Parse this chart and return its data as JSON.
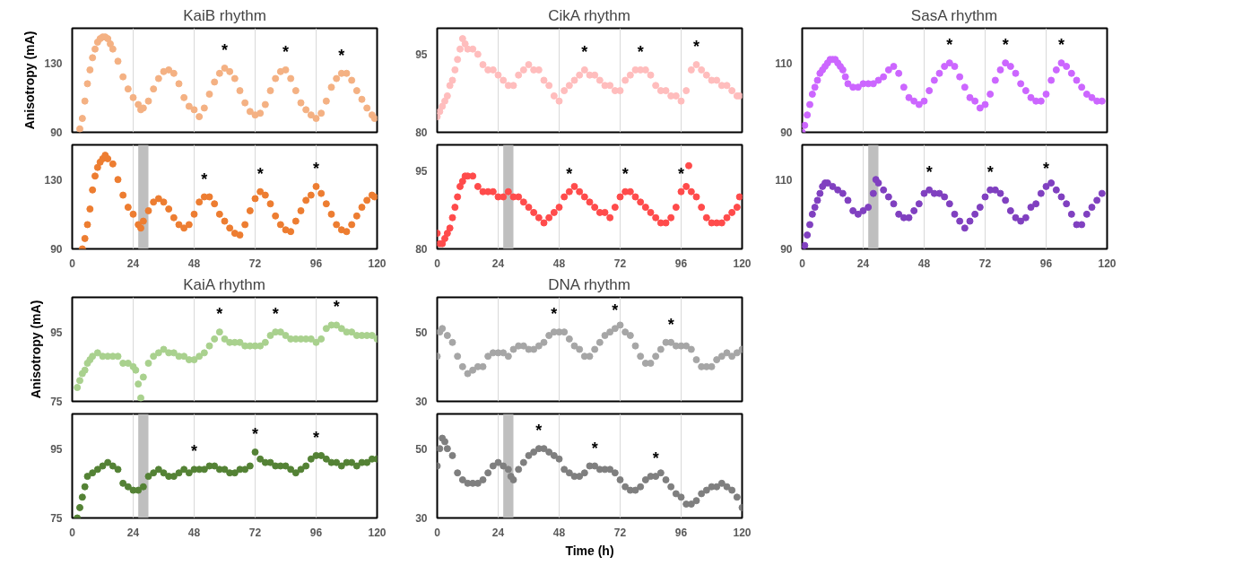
{
  "chart_data": [
    {
      "type": "scatter",
      "title": "KaiB rhythm",
      "ylabel": "Anisotropy (mA)",
      "color": "#f4b183",
      "marker": "circle",
      "grid": "x",
      "tick_labels": "y",
      "xlim": [
        0,
        120
      ],
      "xticks": [
        0,
        24,
        48,
        72,
        96,
        120
      ],
      "ylim": [
        90,
        150
      ],
      "yticks": [
        90,
        130
      ],
      "x": [
        3,
        4,
        5,
        6,
        7,
        8,
        9,
        10,
        11,
        12,
        13,
        14,
        15,
        16,
        18,
        20,
        22,
        24,
        26,
        27,
        28,
        30,
        32,
        34,
        36,
        38,
        40,
        42,
        44,
        46,
        48,
        50,
        52,
        54,
        56,
        58,
        60,
        62,
        64,
        66,
        68,
        70,
        72,
        74,
        76,
        78,
        80,
        82,
        84,
        86,
        88,
        90,
        92,
        94,
        96,
        98,
        100,
        102,
        104,
        106,
        108,
        110,
        112,
        114,
        116,
        118,
        119
      ],
      "values": [
        92,
        98,
        108,
        118,
        126,
        133,
        138,
        142,
        144,
        145,
        145,
        144,
        141,
        138,
        131,
        122,
        115,
        110,
        106,
        103,
        104,
        108,
        115,
        121,
        125,
        126,
        124,
        118,
        110,
        105,
        103,
        99,
        104,
        112,
        119,
        124,
        127,
        125,
        121,
        114,
        107,
        102,
        100,
        101,
        106,
        114,
        121,
        125,
        126,
        121,
        114,
        107,
        103,
        100,
        98,
        101,
        108,
        116,
        121,
        124,
        124,
        120,
        114,
        109,
        104,
        100,
        98
      ],
      "annotations": [
        {
          "text": "*",
          "x": 60,
          "y": 127
        },
        {
          "text": "*",
          "x": 84,
          "y": 126
        },
        {
          "text": "*",
          "x": 106,
          "y": 124
        }
      ]
    },
    {
      "type": "scatter",
      "title": "CikA rhythm",
      "color": "#ffbdbd",
      "marker": "circle",
      "grid": "x",
      "tick_labels": "y",
      "xlim": [
        0,
        120
      ],
      "xticks": [
        0,
        24,
        48,
        72,
        96,
        120
      ],
      "ylim": [
        80,
        100
      ],
      "yticks": [
        80,
        95
      ],
      "x": [
        0,
        1,
        2,
        3,
        4,
        5,
        6,
        7,
        8,
        9,
        10,
        11,
        12,
        14,
        16,
        18,
        20,
        22,
        24,
        26,
        28,
        30,
        32,
        34,
        36,
        38,
        40,
        42,
        44,
        46,
        48,
        50,
        52,
        54,
        56,
        58,
        60,
        62,
        64,
        66,
        68,
        70,
        72,
        74,
        76,
        78,
        80,
        82,
        84,
        86,
        88,
        90,
        92,
        94,
        96,
        98,
        100,
        102,
        104,
        106,
        108,
        110,
        112,
        114,
        116,
        118,
        119
      ],
      "values": [
        83,
        84,
        85,
        86,
        87,
        89,
        90,
        92,
        94,
        96,
        98,
        97,
        96,
        96,
        95,
        93,
        92,
        92,
        91,
        90,
        89,
        89,
        91,
        92,
        93,
        92,
        92,
        90,
        89,
        87,
        86,
        88,
        89,
        90,
        91,
        92,
        91,
        91,
        90,
        89,
        89,
        88,
        88,
        90,
        91,
        92,
        92,
        92,
        91,
        89,
        88,
        88,
        87,
        87,
        86,
        88,
        92,
        93,
        92,
        91,
        90,
        90,
        89,
        89,
        88,
        87,
        87
      ],
      "annotations": [
        {
          "text": "*",
          "x": 58,
          "y": 92
        },
        {
          "text": "*",
          "x": 80,
          "y": 92
        },
        {
          "text": "*",
          "x": 102,
          "y": 93
        }
      ]
    },
    {
      "type": "scatter",
      "title": "SasA rhythm",
      "color": "#cc66ff",
      "marker": "circle",
      "grid": "x",
      "tick_labels": "y",
      "xlim": [
        0,
        120
      ],
      "xticks": [
        0,
        24,
        48,
        72,
        96,
        120
      ],
      "ylim": [
        90,
        120
      ],
      "yticks": [
        90,
        110
      ],
      "x": [
        0,
        1,
        2,
        3,
        4,
        5,
        6,
        7,
        8,
        9,
        10,
        11,
        12,
        13,
        14,
        15,
        16,
        17,
        18,
        20,
        22,
        24,
        26,
        28,
        30,
        32,
        34,
        36,
        38,
        40,
        42,
        44,
        46,
        48,
        50,
        52,
        54,
        56,
        58,
        60,
        62,
        64,
        66,
        68,
        70,
        72,
        74,
        76,
        78,
        80,
        82,
        84,
        86,
        88,
        90,
        92,
        94,
        96,
        98,
        100,
        102,
        104,
        106,
        108,
        110,
        112,
        114,
        116,
        118
      ],
      "values": [
        90,
        92,
        95,
        98,
        101,
        103,
        105,
        107,
        108,
        109,
        110,
        111,
        111,
        111,
        110,
        109,
        108,
        106,
        104,
        103,
        103,
        104,
        104,
        104,
        105,
        106,
        108,
        109,
        107,
        103,
        100,
        99,
        98,
        99,
        102,
        105,
        107,
        109,
        110,
        109,
        106,
        103,
        100,
        99,
        97,
        98,
        101,
        105,
        108,
        110,
        109,
        107,
        104,
        102,
        100,
        99,
        99,
        101,
        105,
        108,
        110,
        109,
        107,
        105,
        103,
        101,
        100,
        99,
        99
      ],
      "annotations": [
        {
          "text": "*",
          "x": 58,
          "y": 110
        },
        {
          "text": "*",
          "x": 80,
          "y": 110
        },
        {
          "text": "*",
          "x": 102,
          "y": 110
        }
      ]
    },
    {
      "type": "scatter",
      "color": "#ed7d31",
      "marker": "circle",
      "grid": "x",
      "xlim": [
        0,
        120
      ],
      "xticks": [
        0,
        24,
        48,
        72,
        96,
        120
      ],
      "ylim": [
        90,
        150
      ],
      "yticks": [
        90,
        130
      ],
      "bands": [
        {
          "axis": "x",
          "from": 26,
          "to": 30,
          "color": "#bfbfbf"
        }
      ],
      "x": [
        4,
        5,
        6,
        7,
        8,
        9,
        10,
        11,
        12,
        13,
        14,
        16,
        18,
        20,
        22,
        24,
        26,
        27,
        28,
        30,
        32,
        34,
        36,
        38,
        40,
        42,
        44,
        46,
        48,
        50,
        52,
        54,
        56,
        58,
        60,
        62,
        64,
        66,
        68,
        70,
        72,
        74,
        76,
        78,
        80,
        82,
        84,
        86,
        88,
        90,
        92,
        94,
        96,
        98,
        100,
        102,
        104,
        106,
        108,
        110,
        112,
        114,
        116,
        118,
        119
      ],
      "values": [
        90,
        96,
        104,
        113,
        124,
        132,
        137,
        140,
        142,
        144,
        142,
        139,
        130,
        121,
        114,
        110,
        104,
        102,
        106,
        112,
        117,
        119,
        117,
        113,
        108,
        104,
        102,
        104,
        110,
        117,
        120,
        120,
        116,
        110,
        106,
        102,
        99,
        98,
        104,
        112,
        119,
        123,
        121,
        116,
        109,
        104,
        101,
        100,
        106,
        112,
        118,
        121,
        126,
        122,
        116,
        110,
        104,
        101,
        100,
        104,
        109,
        114,
        118,
        121,
        120
      ],
      "annotations": [
        {
          "text": "*",
          "x": 52,
          "y": 120
        },
        {
          "text": "*",
          "x": 74,
          "y": 123
        },
        {
          "text": "*",
          "x": 96,
          "y": 126
        }
      ]
    },
    {
      "type": "scatter",
      "color": "#ff4b4b",
      "marker": "circle",
      "grid": "x",
      "xlim": [
        0,
        120
      ],
      "xticks": [
        0,
        24,
        48,
        72,
        96,
        120
      ],
      "ylim": [
        80,
        100
      ],
      "yticks": [
        80,
        95
      ],
      "bands": [
        {
          "axis": "x",
          "from": 26,
          "to": 30,
          "color": "#bfbfbf"
        }
      ],
      "x": [
        0,
        1,
        2,
        3,
        4,
        5,
        6,
        7,
        8,
        9,
        10,
        11,
        12,
        14,
        16,
        18,
        20,
        22,
        24,
        26,
        28,
        30,
        32,
        34,
        36,
        38,
        40,
        42,
        44,
        46,
        48,
        50,
        52,
        54,
        56,
        58,
        60,
        62,
        64,
        66,
        68,
        70,
        72,
        74,
        76,
        78,
        80,
        82,
        84,
        86,
        88,
        90,
        92,
        94,
        96,
        98,
        99,
        100,
        102,
        104,
        106,
        108,
        110,
        112,
        114,
        116,
        118,
        119
      ],
      "values": [
        83,
        81,
        81,
        82,
        83,
        84,
        86,
        88,
        90,
        92,
        93,
        94,
        94,
        94,
        92,
        91,
        91,
        91,
        90,
        90,
        91,
        90,
        90,
        89,
        88,
        87,
        86,
        85,
        86,
        87,
        88,
        90,
        91,
        92,
        91,
        90,
        89,
        88,
        87,
        87,
        86,
        88,
        90,
        91,
        91,
        90,
        89,
        88,
        87,
        86,
        85,
        85,
        86,
        88,
        91,
        92,
        96,
        91,
        90,
        88,
        86,
        85,
        85,
        85,
        86,
        87,
        88,
        90
      ],
      "annotations": [
        {
          "text": "*",
          "x": 52,
          "y": 91
        },
        {
          "text": "*",
          "x": 74,
          "y": 91
        },
        {
          "text": "*",
          "x": 96,
          "y": 91
        }
      ]
    },
    {
      "type": "scatter",
      "color": "#8040c0",
      "marker": "circle",
      "grid": "x",
      "xlim": [
        0,
        120
      ],
      "xticks": [
        0,
        24,
        48,
        72,
        96,
        120
      ],
      "ylim": [
        90,
        120
      ],
      "yticks": [
        90,
        110
      ],
      "bands": [
        {
          "axis": "x",
          "from": 26,
          "to": 30,
          "color": "#bfbfbf"
        }
      ],
      "x": [
        0,
        1,
        2,
        3,
        4,
        5,
        6,
        7,
        8,
        9,
        10,
        12,
        14,
        16,
        18,
        20,
        22,
        24,
        26,
        28,
        29,
        30,
        32,
        34,
        36,
        38,
        40,
        42,
        44,
        46,
        48,
        50,
        52,
        54,
        56,
        58,
        60,
        62,
        64,
        66,
        68,
        70,
        72,
        74,
        76,
        78,
        80,
        82,
        84,
        86,
        88,
        90,
        92,
        94,
        96,
        98,
        100,
        102,
        104,
        106,
        108,
        110,
        112,
        114,
        116,
        118
      ],
      "values": [
        90,
        91,
        94,
        97,
        100,
        102,
        104,
        106,
        108,
        109,
        109,
        108,
        107,
        106,
        104,
        101,
        100,
        101,
        102,
        106,
        110,
        109,
        107,
        105,
        103,
        100,
        99,
        99,
        101,
        103,
        106,
        107,
        106,
        106,
        105,
        103,
        100,
        98,
        96,
        98,
        100,
        102,
        105,
        107,
        107,
        106,
        104,
        101,
        99,
        98,
        99,
        102,
        103,
        106,
        108,
        109,
        107,
        105,
        103,
        100,
        97,
        97,
        100,
        102,
        104,
        106
      ],
      "annotations": [
        {
          "text": "*",
          "x": 50,
          "y": 107
        },
        {
          "text": "*",
          "x": 74,
          "y": 107
        },
        {
          "text": "*",
          "x": 96,
          "y": 108
        }
      ]
    },
    {
      "type": "scatter",
      "title": "KaiA rhythm",
      "ylabel": "Anisotropy (mA)",
      "color": "#a9d18e",
      "marker": "circle",
      "grid": "x",
      "tick_labels": "y",
      "xlim": [
        0,
        120
      ],
      "xticks": [
        0,
        24,
        48,
        72,
        96,
        120
      ],
      "ylim": [
        75,
        105
      ],
      "yticks": [
        75,
        95
      ],
      "x": [
        2,
        3,
        4,
        5,
        6,
        7,
        8,
        10,
        12,
        14,
        16,
        18,
        20,
        22,
        24,
        25,
        26,
        27,
        28,
        30,
        32,
        34,
        36,
        38,
        40,
        42,
        44,
        46,
        48,
        50,
        52,
        54,
        56,
        58,
        60,
        62,
        64,
        66,
        68,
        70,
        72,
        74,
        76,
        78,
        80,
        82,
        84,
        86,
        88,
        90,
        92,
        94,
        96,
        98,
        100,
        102,
        104,
        106,
        108,
        110,
        112,
        114,
        116,
        118,
        120
      ],
      "values": [
        79,
        81,
        83,
        84,
        86,
        87,
        88,
        89,
        88,
        88,
        88,
        88,
        86,
        86,
        85,
        84,
        80,
        76,
        82,
        86,
        88,
        89,
        90,
        89,
        89,
        88,
        88,
        87,
        87,
        88,
        89,
        91,
        93,
        95,
        93,
        92,
        92,
        92,
        91,
        91,
        91,
        91,
        92,
        94,
        95,
        95,
        94,
        93,
        93,
        93,
        93,
        93,
        92,
        93,
        96,
        97,
        97,
        96,
        95,
        95,
        94,
        94,
        94,
        94,
        93
      ],
      "annotations": [
        {
          "text": "*",
          "x": 58,
          "y": 95
        },
        {
          "text": "*",
          "x": 80,
          "y": 95
        },
        {
          "text": "*",
          "x": 104,
          "y": 97
        }
      ]
    },
    {
      "type": "scatter",
      "title": "DNA rhythm",
      "color": "#a6a6a6",
      "marker": "circle",
      "grid": "x",
      "tick_labels": "y",
      "xlim": [
        0,
        120
      ],
      "xticks": [
        0,
        24,
        48,
        72,
        96,
        120
      ],
      "ylim": [
        30,
        60
      ],
      "yticks": [
        30,
        50
      ],
      "x": [
        0,
        1,
        2,
        4,
        6,
        8,
        10,
        12,
        14,
        16,
        18,
        20,
        22,
        24,
        26,
        28,
        30,
        32,
        34,
        36,
        38,
        40,
        42,
        44,
        46,
        48,
        50,
        52,
        54,
        56,
        58,
        60,
        62,
        64,
        66,
        68,
        70,
        72,
        74,
        76,
        78,
        80,
        82,
        84,
        86,
        88,
        90,
        92,
        94,
        96,
        98,
        100,
        102,
        104,
        106,
        108,
        110,
        112,
        114,
        116,
        118,
        120
      ],
      "values": [
        43,
        50,
        51,
        49,
        47,
        43,
        40,
        38,
        39,
        40,
        40,
        43,
        44,
        44,
        44,
        43,
        45,
        46,
        46,
        45,
        45,
        46,
        47,
        49,
        50,
        50,
        50,
        48,
        46,
        45,
        43,
        43,
        45,
        47,
        49,
        50,
        51,
        52,
        50,
        49,
        46,
        43,
        41,
        41,
        43,
        45,
        47,
        47,
        46,
        46,
        46,
        45,
        42,
        40,
        40,
        40,
        42,
        43,
        44,
        43,
        44,
        45
      ],
      "annotations": [
        {
          "text": "*",
          "x": 46,
          "y": 50
        },
        {
          "text": "*",
          "x": 70,
          "y": 51
        },
        {
          "text": "*",
          "x": 92,
          "y": 47
        }
      ]
    },
    {
      "type": "scatter",
      "color": "#548235",
      "marker": "circle",
      "grid": "x",
      "xlim": [
        0,
        120
      ],
      "xticks": [
        0,
        24,
        48,
        72,
        96,
        120
      ],
      "ylim": [
        75,
        105
      ],
      "yticks": [
        75,
        95
      ],
      "bands": [
        {
          "axis": "x",
          "from": 26,
          "to": 30,
          "color": "#bfbfbf"
        }
      ],
      "x": [
        2,
        3,
        4,
        5,
        6,
        8,
        10,
        12,
        14,
        16,
        18,
        20,
        22,
        24,
        26,
        28,
        30,
        32,
        34,
        36,
        38,
        40,
        42,
        44,
        46,
        48,
        50,
        52,
        54,
        56,
        58,
        60,
        62,
        64,
        66,
        68,
        70,
        72,
        74,
        76,
        78,
        80,
        82,
        84,
        86,
        88,
        90,
        92,
        94,
        96,
        98,
        100,
        102,
        104,
        106,
        108,
        110,
        112,
        114,
        116,
        118,
        120
      ],
      "values": [
        75,
        78,
        81,
        84,
        87,
        88,
        89,
        90,
        91,
        90,
        89,
        85,
        84,
        83,
        83,
        84,
        87,
        88,
        89,
        88,
        87,
        87,
        88,
        89,
        88,
        89,
        89,
        89,
        90,
        90,
        89,
        89,
        88,
        88,
        89,
        89,
        90,
        94,
        92,
        91,
        91,
        90,
        90,
        90,
        89,
        88,
        89,
        90,
        92,
        93,
        93,
        92,
        91,
        91,
        90,
        91,
        91,
        90,
        91,
        91,
        92,
        92
      ],
      "annotations": [
        {
          "text": "*",
          "x": 48,
          "y": 89
        },
        {
          "text": "*",
          "x": 72,
          "y": 94
        },
        {
          "text": "*",
          "x": 96,
          "y": 93
        }
      ]
    },
    {
      "type": "scatter",
      "xlabel": "Time (h)",
      "color": "#7f7f7f",
      "marker": "circle",
      "grid": "x",
      "xlim": [
        0,
        120
      ],
      "xticks": [
        0,
        24,
        48,
        72,
        96,
        120
      ],
      "ylim": [
        30,
        60
      ],
      "yticks": [
        30,
        50
      ],
      "bands": [
        {
          "axis": "x",
          "from": 26,
          "to": 30,
          "color": "#bfbfbf"
        }
      ],
      "x": [
        0,
        1,
        2,
        3,
        4,
        6,
        8,
        10,
        12,
        14,
        16,
        18,
        20,
        22,
        24,
        26,
        28,
        29,
        30,
        32,
        34,
        36,
        38,
        40,
        42,
        44,
        46,
        48,
        50,
        52,
        54,
        56,
        58,
        60,
        62,
        64,
        66,
        68,
        70,
        72,
        74,
        76,
        78,
        80,
        82,
        84,
        86,
        88,
        90,
        92,
        94,
        96,
        98,
        100,
        102,
        104,
        106,
        108,
        110,
        112,
        114,
        116,
        118,
        120
      ],
      "values": [
        45,
        50,
        53,
        52,
        50,
        48,
        43,
        41,
        40,
        40,
        40,
        41,
        43,
        45,
        46,
        45,
        44,
        42,
        41,
        44,
        46,
        48,
        49,
        50,
        50,
        49,
        48,
        47,
        44,
        43,
        42,
        42,
        43,
        45,
        45,
        44,
        44,
        44,
        43,
        41,
        39,
        38,
        38,
        39,
        41,
        42,
        42,
        43,
        41,
        39,
        37,
        36,
        34,
        34,
        35,
        37,
        38,
        39,
        39,
        40,
        39,
        38,
        36,
        33
      ],
      "annotations": [
        {
          "text": "*",
          "x": 40,
          "y": 50
        },
        {
          "text": "*",
          "x": 62,
          "y": 45
        },
        {
          "text": "*",
          "x": 86,
          "y": 42
        }
      ]
    }
  ]
}
